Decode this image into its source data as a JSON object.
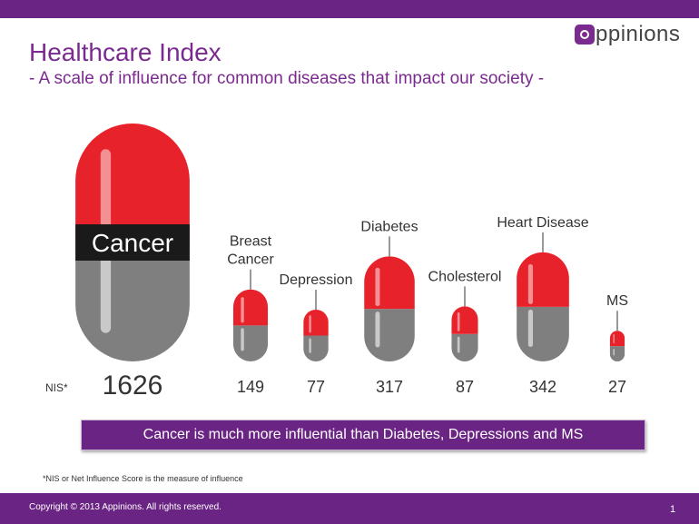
{
  "header": {
    "title": "Healthcare Index",
    "subtitle": "- A scale of influence for common diseases that impact our society -",
    "logo_text": "ppinions"
  },
  "chart_data": {
    "type": "bar",
    "title": "Healthcare Index",
    "subtitle": "- A scale of influence for common diseases that impact our society -",
    "value_label": "NIS*",
    "categories": [
      "Cancer",
      "Breast Cancer",
      "Depression",
      "Diabetes",
      "Cholesterol",
      "Heart Disease",
      "MS"
    ],
    "category_lines": [
      [
        "Cancer"
      ],
      [
        "Breast",
        "Cancer"
      ],
      [
        "Depression"
      ],
      [
        "Diabetes"
      ],
      [
        "Cholesterol"
      ],
      [
        "Heart Disease"
      ],
      [
        "MS"
      ]
    ],
    "values": [
      1626,
      149,
      77,
      317,
      87,
      342,
      27
    ],
    "colors": {
      "top": "#e8222a",
      "bottom": "#7f7f7f",
      "label_band": "#1a1a1a"
    }
  },
  "banner": "Cancer is much more influential than Diabetes, Depressions and MS",
  "footnote": "*NIS or Net Influence Score is the measure of influence",
  "footer": {
    "copyright": "Copyright © 2013 Appinions. All rights reserved.",
    "page_number": "1"
  }
}
